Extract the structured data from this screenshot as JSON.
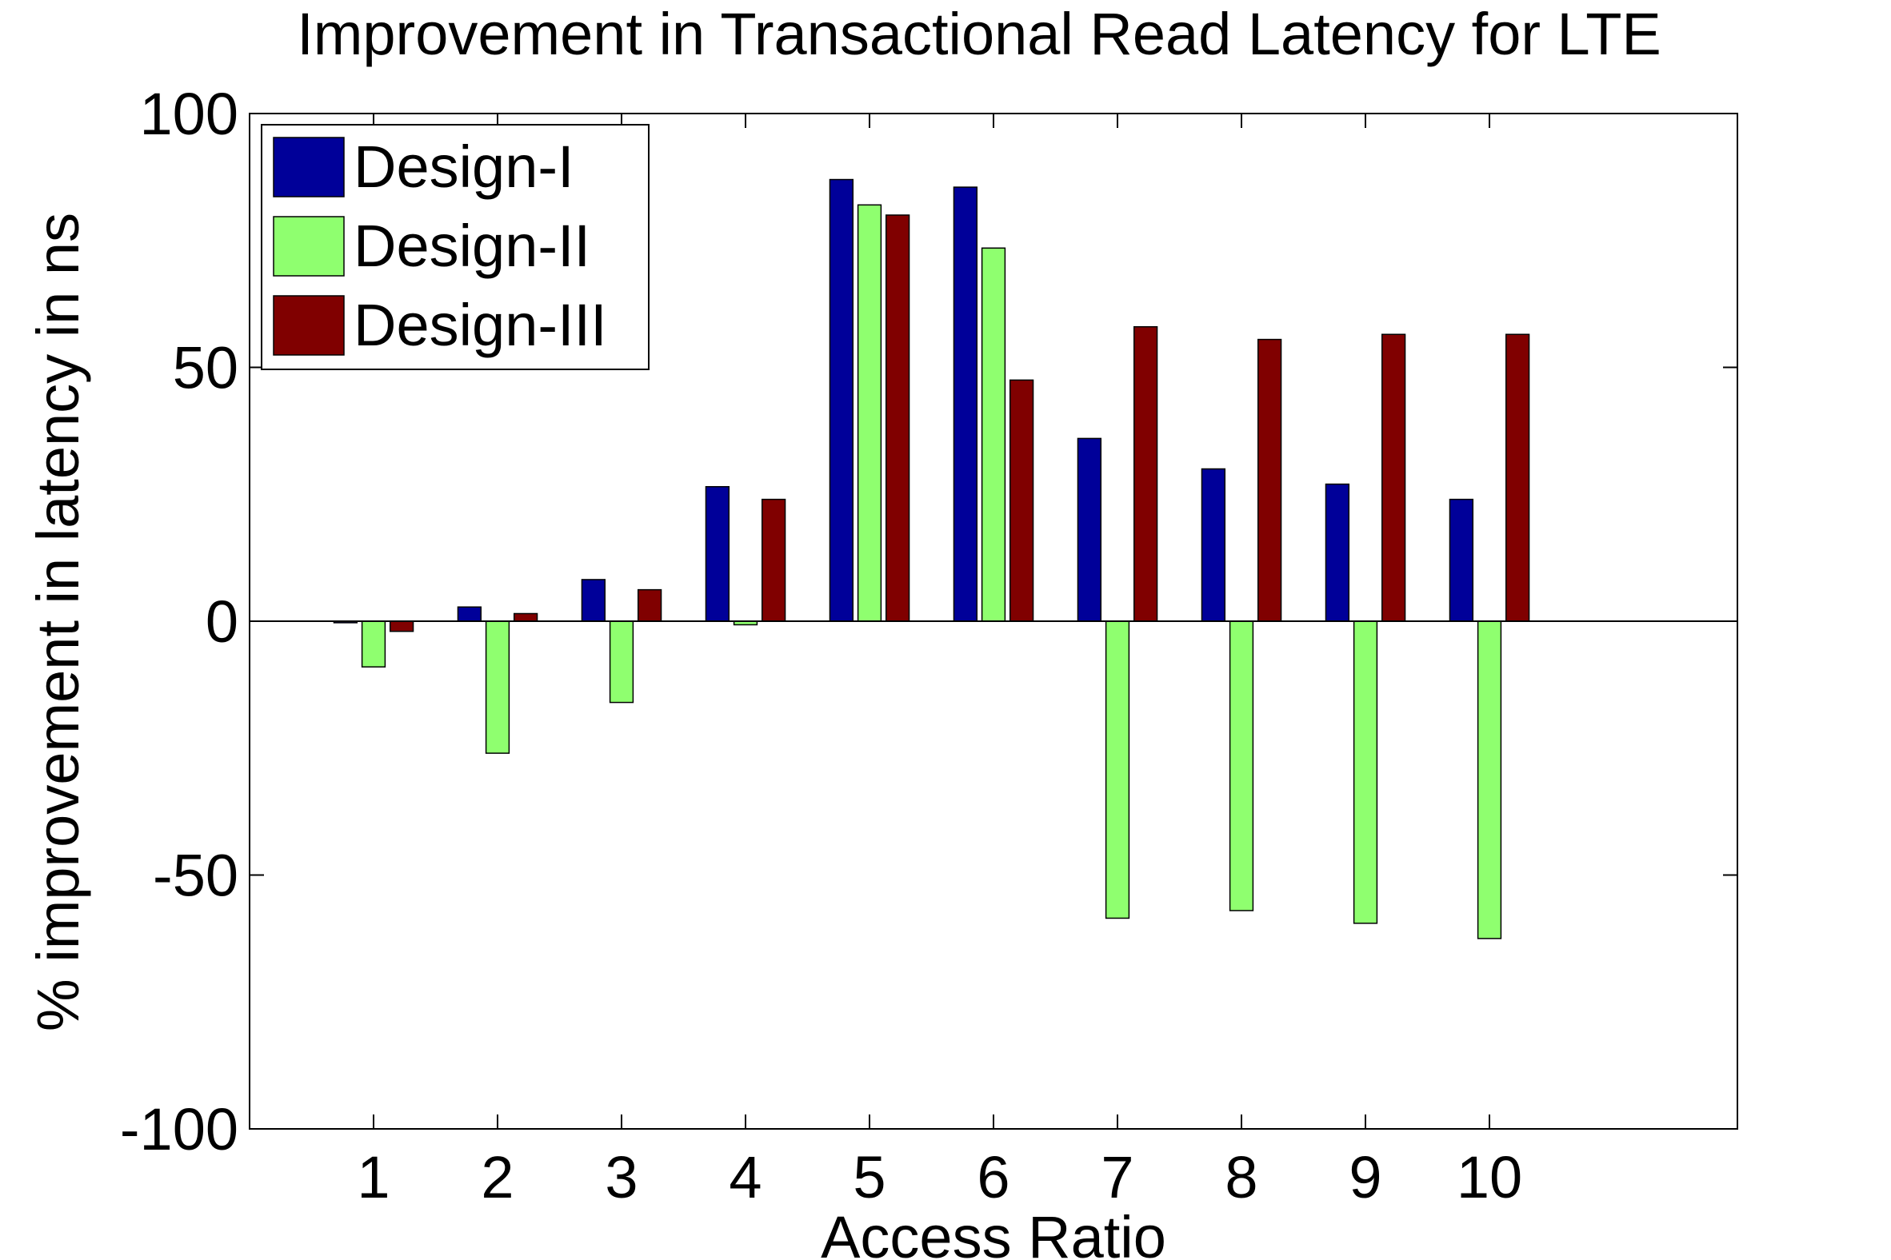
{
  "chart_data": {
    "type": "bar",
    "title": "Improvement in Transactional Read Latency for LTE",
    "xlabel": "Access Ratio",
    "ylabel": "% improvement in latency in ns",
    "categories": [
      "1",
      "2",
      "3",
      "4",
      "5",
      "6",
      "7",
      "8",
      "9",
      "10"
    ],
    "xlim": [
      0,
      12
    ],
    "ylim": [
      -100,
      100
    ],
    "yticks": [
      -100,
      -50,
      0,
      50,
      100
    ],
    "ytick_labels": [
      "-100",
      "-50",
      "0",
      "50",
      "100"
    ],
    "grid": false,
    "legend_position": "top-left",
    "series": [
      {
        "name": "Design-I",
        "color": "#000099",
        "values": [
          -0.3,
          2.8,
          8.2,
          26.5,
          87.0,
          85.5,
          36.0,
          30.0,
          27.0,
          24.0
        ]
      },
      {
        "name": "Design-II",
        "color": "#8FFF6F",
        "values": [
          -9.0,
          -26.0,
          -16.0,
          -0.7,
          82.0,
          73.5,
          -58.5,
          -57.0,
          -59.5,
          -62.5
        ]
      },
      {
        "name": "Design-III",
        "color": "#800000",
        "values": [
          -2.0,
          1.5,
          6.2,
          24.0,
          80.0,
          47.5,
          58.0,
          55.5,
          56.5,
          56.5
        ]
      }
    ]
  }
}
